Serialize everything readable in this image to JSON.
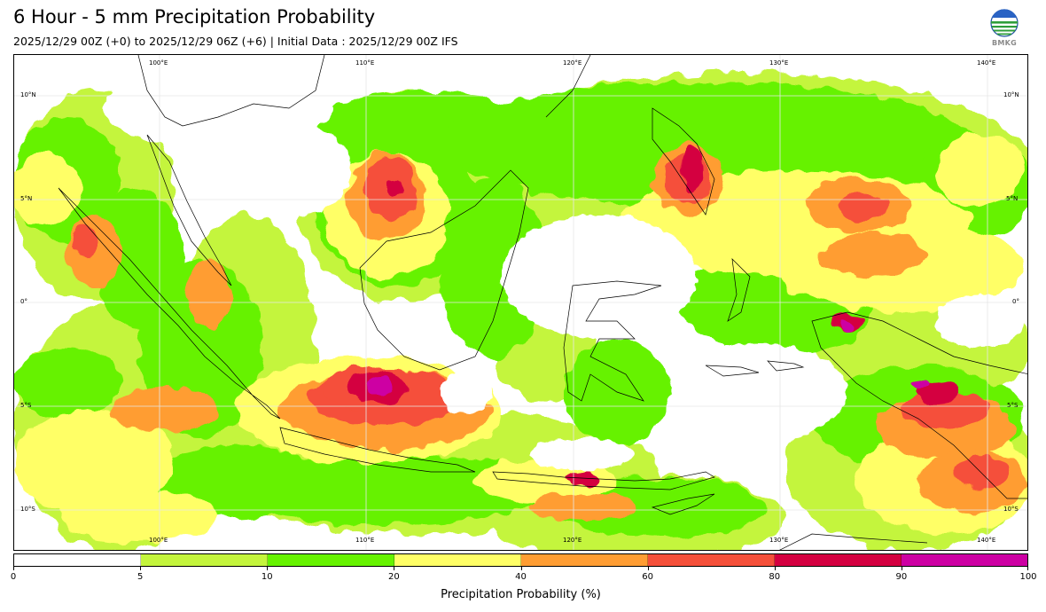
{
  "header": {
    "title": "6 Hour - 5 mm Precipitation Probability",
    "subtitle": "2025/12/29 00Z (+0) to 2025/12/29 06Z (+6) | Initial Data : 2025/12/29 00Z IFS"
  },
  "logo": {
    "text": "BMKG",
    "icon": "bmkg-globe-icon"
  },
  "map": {
    "region": "Indonesia",
    "lon_range": [
      92,
      141
    ],
    "lat_range": [
      -12,
      12
    ],
    "lon_labels": [
      "100°E",
      "110°E",
      "120°E",
      "130°E",
      "140°E"
    ],
    "lat_labels": [
      "10°N",
      "5°N",
      "0°",
      "5°S",
      "10°S"
    ]
  },
  "colorbar": {
    "title": "Precipitation Probability (%)",
    "bounds": [
      0,
      5,
      10,
      20,
      40,
      60,
      80,
      90,
      100
    ],
    "colors": [
      "#ffffff",
      "#c4f53c",
      "#66f200",
      "#ffff66",
      "#ff9d33",
      "#f5503a",
      "#d40040",
      "#cd00a3"
    ]
  }
}
